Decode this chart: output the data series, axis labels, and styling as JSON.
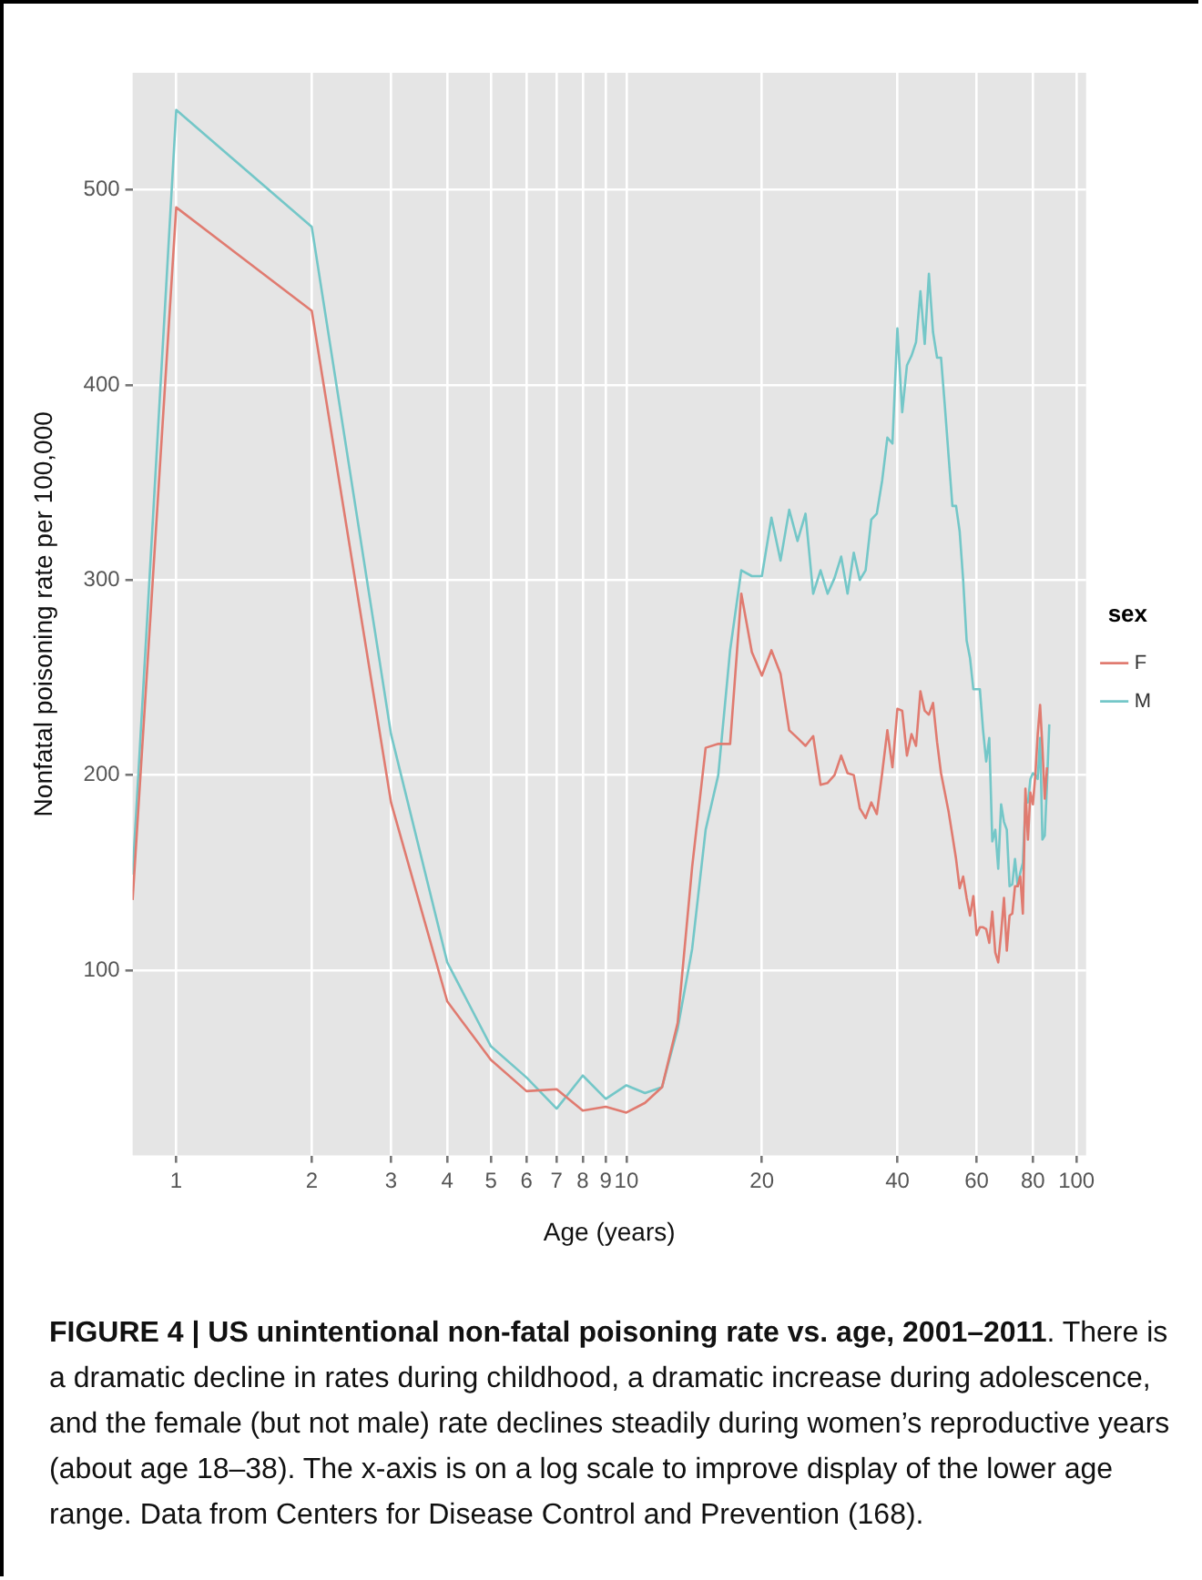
{
  "chart_data": {
    "type": "line",
    "title": "FIGURE 4 | US unintentional non-fatal poisoning rate vs. age, 2001–2011",
    "annotations": [
      ". There is a dramatic decline in rates during childhood, a dramatic increase during adolescence, and the female (but not male) rate declines steadily during women’s reproductive years (about age 18–38). The x-axis is on a log scale to improve display of the lower age range. Data from Centers for Disease Control and Prevention (168)."
    ],
    "xlabel": "Age (years)",
    "ylabel": "Nonfatal poisoning rate per 100,000",
    "legend_title": "sex",
    "log": "x",
    "xlim": [
      0.8,
      105
    ],
    "xticks": [
      1,
      2,
      3,
      4,
      5,
      6,
      7,
      8,
      9,
      10,
      20,
      40,
      60,
      80,
      100
    ],
    "ylim": [
      5,
      560
    ],
    "yticks": [
      100,
      200,
      300,
      400,
      500
    ],
    "grid": true,
    "legend": "right",
    "line_style": "solid",
    "marker": "none",
    "series": [
      {
        "name": "F",
        "color": "#e07b70",
        "x": [
          0.8,
          1,
          2,
          3,
          4,
          5,
          6,
          7,
          8,
          9,
          10,
          11,
          12,
          13,
          14,
          15,
          16,
          17,
          18,
          19,
          20,
          21,
          22,
          23,
          24,
          25,
          26,
          27,
          28,
          29,
          30,
          31,
          32,
          33,
          34,
          35,
          36,
          37,
          38,
          39,
          40,
          41,
          42,
          43,
          44,
          45,
          46,
          47,
          48,
          49,
          50,
          51,
          52,
          53,
          54,
          55,
          56,
          57,
          58,
          59,
          60,
          61,
          62,
          63,
          64,
          65,
          66,
          67,
          68,
          69,
          70,
          71,
          72,
          73,
          74,
          75,
          76,
          77,
          78,
          79,
          80,
          81,
          82,
          83,
          84,
          85,
          86
        ],
        "values": [
          136,
          491,
          438,
          186,
          84,
          54,
          38,
          39,
          28,
          30,
          27,
          32,
          40,
          73,
          153,
          214,
          216,
          216,
          293,
          263,
          251,
          264,
          252,
          223,
          219,
          215,
          220,
          195,
          196,
          200,
          210,
          201,
          200,
          183,
          178,
          186,
          180,
          201,
          223,
          204,
          234,
          233,
          210,
          221,
          215,
          243,
          233,
          231,
          237,
          217,
          201,
          191,
          181,
          169,
          157,
          142,
          148,
          137,
          128,
          138,
          118,
          122,
          122,
          121,
          114,
          130,
          109,
          104,
          119,
          137,
          110,
          128,
          129,
          143,
          143,
          148,
          129,
          193,
          167,
          191,
          185,
          200,
          221,
          236,
          214,
          188,
          204
        ]
      },
      {
        "name": "M",
        "color": "#74c7c8",
        "x": [
          0.8,
          1,
          2,
          3,
          4,
          5,
          6,
          7,
          8,
          9,
          10,
          11,
          12,
          13,
          14,
          15,
          16,
          17,
          18,
          19,
          20,
          21,
          22,
          23,
          24,
          25,
          26,
          27,
          28,
          29,
          30,
          31,
          32,
          33,
          34,
          35,
          36,
          37,
          38,
          39,
          40,
          41,
          42,
          43,
          44,
          45,
          46,
          47,
          48,
          49,
          50,
          51,
          52,
          53,
          54,
          55,
          56,
          57,
          58,
          59,
          60,
          61,
          62,
          63,
          64,
          65,
          66,
          67,
          68,
          69,
          70,
          71,
          72,
          73,
          74,
          75,
          76,
          77,
          78,
          79,
          80,
          81,
          82,
          83,
          84,
          85,
          86,
          87
        ],
        "values": [
          149,
          541,
          481,
          221,
          104,
          61,
          45,
          29,
          46,
          34,
          41,
          37,
          40,
          70,
          111,
          172,
          200,
          264,
          305,
          302,
          302,
          332,
          310,
          336,
          320,
          334,
          293,
          305,
          293,
          301,
          312,
          293,
          314,
          300,
          305,
          331,
          334,
          351,
          373,
          370,
          429,
          386,
          410,
          415,
          422,
          448,
          421,
          457,
          427,
          414,
          414,
          389,
          363,
          338,
          338,
          325,
          300,
          269,
          260,
          244,
          244,
          244,
          223,
          207,
          219,
          166,
          172,
          152,
          185,
          176,
          172,
          143,
          144,
          157,
          143,
          150,
          155,
          186,
          186,
          198,
          201,
          200,
          198,
          219,
          167,
          169,
          196,
          226
        ]
      }
    ]
  }
}
